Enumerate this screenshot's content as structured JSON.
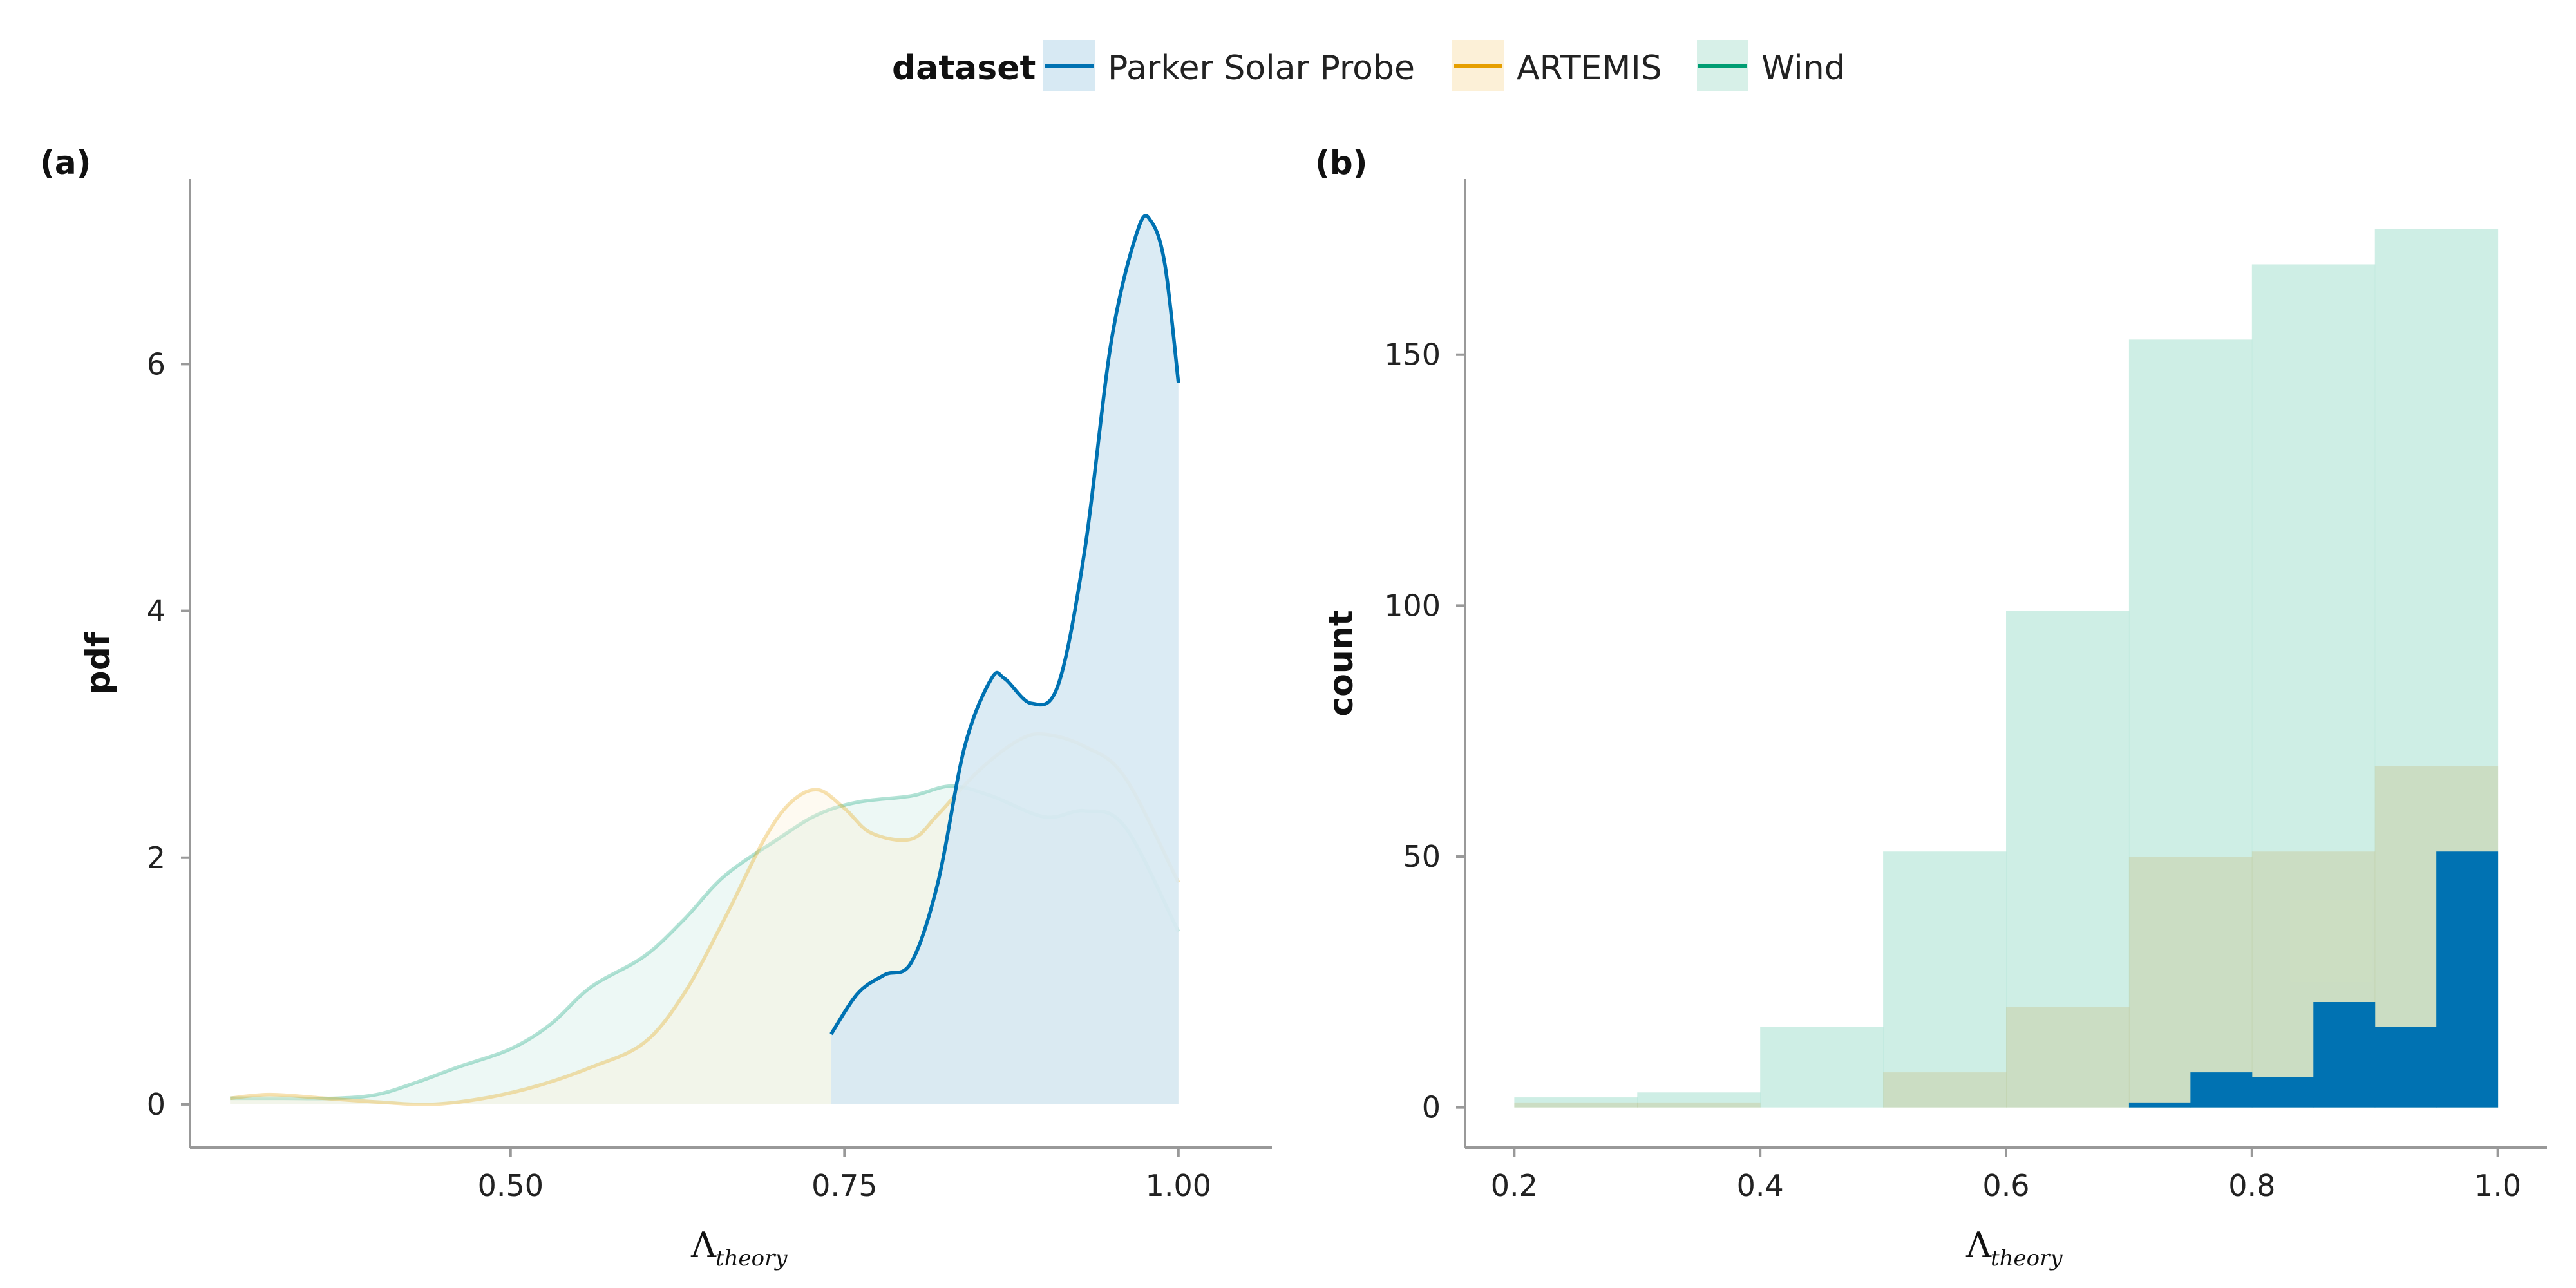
{
  "legend": {
    "title": "dataset",
    "entries": [
      {
        "label": "Parker Solar Probe",
        "color": "#0072b2",
        "fill": "#d7e9f3"
      },
      {
        "label": "ARTEMIS",
        "color": "#e69f00",
        "fill": "#fcf0d7"
      },
      {
        "label": "Wind",
        "color": "#009e73",
        "fill": "#d7f0e8"
      }
    ]
  },
  "chart_data": [
    {
      "panel_label": "(a)",
      "type": "area",
      "xlabel_symbol": "Λ",
      "xlabel_subscript": "theory",
      "ylabel": "pdf",
      "xlim": [
        0.26,
        1.07
      ],
      "ylim": [
        -0.35,
        7.5
      ],
      "x_ticks": [
        0.5,
        0.75,
        1.0
      ],
      "x_tick_labels": [
        "0.50",
        "0.75",
        "1.00"
      ],
      "y_ticks": [
        0,
        2,
        4,
        6
      ],
      "y_tick_labels": [
        "0",
        "2",
        "4",
        "6"
      ],
      "grid": false,
      "series": [
        {
          "name": "Wind",
          "x": [
            0.29,
            0.33,
            0.37,
            0.4,
            0.43,
            0.46,
            0.5,
            0.53,
            0.56,
            0.6,
            0.63,
            0.66,
            0.7,
            0.73,
            0.76,
            0.8,
            0.83,
            0.86,
            0.9,
            0.93,
            0.96,
            1.0
          ],
          "y": [
            0.05,
            0.05,
            0.05,
            0.08,
            0.18,
            0.3,
            0.45,
            0.65,
            0.95,
            1.2,
            1.5,
            1.85,
            2.15,
            2.35,
            2.45,
            2.5,
            2.58,
            2.5,
            2.33,
            2.38,
            2.25,
            1.4
          ]
        },
        {
          "name": "ARTEMIS",
          "x": [
            0.29,
            0.32,
            0.36,
            0.4,
            0.44,
            0.48,
            0.52,
            0.56,
            0.6,
            0.63,
            0.66,
            0.69,
            0.71,
            0.73,
            0.75,
            0.77,
            0.8,
            0.82,
            0.85,
            0.88,
            0.9,
            0.93,
            0.96,
            1.0
          ],
          "y": [
            0.05,
            0.08,
            0.05,
            0.02,
            0.0,
            0.05,
            0.15,
            0.3,
            0.5,
            0.9,
            1.5,
            2.15,
            2.45,
            2.55,
            2.4,
            2.2,
            2.15,
            2.35,
            2.7,
            2.95,
            3.0,
            2.9,
            2.65,
            1.8
          ]
        },
        {
          "name": "Parker Solar Probe",
          "x": [
            0.74,
            0.76,
            0.78,
            0.8,
            0.82,
            0.84,
            0.86,
            0.87,
            0.89,
            0.91,
            0.93,
            0.95,
            0.97,
            0.98,
            0.99,
            1.0
          ],
          "y": [
            0.57,
            0.9,
            1.05,
            1.15,
            1.8,
            2.9,
            3.45,
            3.45,
            3.25,
            3.4,
            4.5,
            6.2,
            7.1,
            7.15,
            6.8,
            5.85
          ]
        }
      ]
    },
    {
      "panel_label": "(b)",
      "type": "bar",
      "xlabel_symbol": "Λ",
      "xlabel_subscript": "theory",
      "ylabel": "count",
      "xlim": [
        0.16,
        1.04
      ],
      "ylim": [
        -8,
        185
      ],
      "x_ticks": [
        0.2,
        0.4,
        0.6,
        0.8,
        1.0
      ],
      "x_tick_labels": [
        "0.2",
        "0.4",
        "0.6",
        "0.8",
        "1.0"
      ],
      "y_ticks": [
        0,
        50,
        100,
        150
      ],
      "y_tick_labels": [
        "0",
        "50",
        "100",
        "150"
      ],
      "grid": false,
      "series": [
        {
          "name": "Wind",
          "bins": [
            [
              0.2,
              0.3
            ],
            [
              0.3,
              0.4
            ],
            [
              0.4,
              0.5
            ],
            [
              0.5,
              0.6
            ],
            [
              0.6,
              0.7
            ],
            [
              0.7,
              0.8
            ],
            [
              0.8,
              0.9
            ],
            [
              0.9,
              1.0
            ]
          ],
          "values": [
            2,
            3,
            16,
            51,
            99,
            153,
            168,
            175
          ]
        },
        {
          "name": "ARTEMIS",
          "bins": [
            [
              0.2,
              0.3
            ],
            [
              0.3,
              0.4
            ],
            [
              0.4,
              0.5
            ],
            [
              0.5,
              0.6
            ],
            [
              0.6,
              0.7
            ],
            [
              0.7,
              0.8
            ],
            [
              0.8,
              0.9
            ],
            [
              0.9,
              1.0
            ]
          ],
          "values": [
            1,
            1,
            0,
            7,
            20,
            50,
            51,
            68
          ]
        },
        {
          "name": "Parker Solar Probe",
          "bins": [
            [
              0.7,
              0.75
            ],
            [
              0.75,
              0.8
            ],
            [
              0.8,
              0.85
            ],
            [
              0.85,
              0.9
            ],
            [
              0.9,
              0.95
            ],
            [
              0.95,
              1.0
            ]
          ],
          "values": [
            1,
            7,
            6,
            21,
            16,
            51
          ]
        }
      ]
    }
  ]
}
